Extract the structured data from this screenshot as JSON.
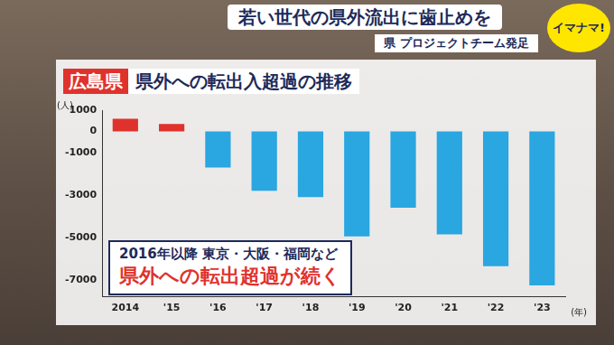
{
  "header": {
    "headline": "若い世代の県外流出に歯止めを",
    "subheadline": "県 プロジェクトチーム発足",
    "logo": "イマナマ!"
  },
  "chart_data": {
    "type": "bar",
    "title_label": "広島県",
    "title": "県外への転出入超過の推移",
    "y_unit": "(人)",
    "x_unit": "(年)",
    "annotations": [
      "2016年以降 東京・大阪・福岡など",
      "県外への転出超過が続く"
    ],
    "categories": [
      "2014",
      "'15",
      "'16",
      "'17",
      "'18",
      "'19",
      "'20",
      "'21",
      "'22",
      "'23"
    ],
    "values": [
      600,
      350,
      -1700,
      -2800,
      -3100,
      -4950,
      -3600,
      -4850,
      -6350,
      -7250
    ],
    "colors": [
      "#e0322c",
      "#e0322c",
      "#2aa6e0",
      "#2aa6e0",
      "#2aa6e0",
      "#2aa6e0",
      "#2aa6e0",
      "#2aa6e0",
      "#2aa6e0",
      "#2aa6e0"
    ],
    "ylim": [
      -7800,
      1000
    ],
    "yticks": [
      1000,
      0,
      -1000,
      -3000,
      -5000,
      -7000
    ],
    "grid": false
  }
}
